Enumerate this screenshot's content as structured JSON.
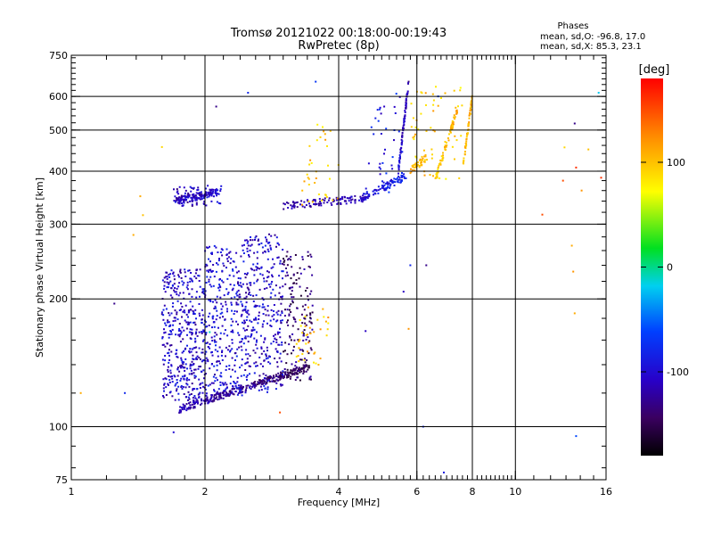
{
  "chart_data": {
    "type": "scatter",
    "title": "Tromsø 20121022 00:18:00-00:19:43",
    "subtitle": "RwPretec (8p)",
    "xlabel": "Frequency [MHz]",
    "ylabel": "Stationary phase Virtual Height [km]",
    "x_scale": "log",
    "y_scale": "log",
    "xlim": [
      1,
      16
    ],
    "ylim": [
      75,
      750
    ],
    "x_ticks": [
      1,
      2,
      4,
      6,
      8,
      10,
      16
    ],
    "x_tick_labels": [
      "1",
      "2",
      "4",
      "6",
      "8",
      "10",
      "16"
    ],
    "x_grid": [
      2,
      4,
      6,
      8,
      10
    ],
    "y_ticks": [
      75,
      100,
      200,
      300,
      400,
      500,
      600,
      750
    ],
    "y_tick_labels": [
      "75",
      "100",
      "200",
      "300",
      "400",
      "500",
      "600",
      "750"
    ],
    "y_grid": [
      100,
      200,
      300,
      400,
      500,
      600
    ],
    "grid": true,
    "stats": {
      "header": "Phases",
      "line_o": "mean, sd,O: -96.8, 17.0",
      "line_x": "mean, sd,X: 85.3, 23.1"
    },
    "colorbar": {
      "label": "[deg]",
      "range": [
        -180,
        180
      ],
      "ticks": [
        100,
        0,
        -100
      ],
      "tick_labels": [
        "100",
        "0",
        "-100"
      ]
    },
    "traces": [
      {
        "f_start": 1.75,
        "f_end": 3.4,
        "h_start": 110,
        "h_end": 138,
        "phase_start": -110,
        "phase_end": -150,
        "count": 320
      },
      {
        "f_start": 1.72,
        "f_end": 2.15,
        "h_start": 340,
        "h_end": 358,
        "phase_start": -110,
        "phase_end": -100,
        "count": 140
      },
      {
        "f_start": 3.0,
        "f_end": 4.6,
        "h_start": 332,
        "h_end": 345,
        "phase_start": -120,
        "phase_end": -110,
        "count": 110
      },
      {
        "f_start": 4.5,
        "f_end": 5.7,
        "h_start": 345,
        "h_end": 390,
        "phase_start": -100,
        "phase_end": -80,
        "count": 90
      },
      {
        "f_start": 5.45,
        "f_end": 5.75,
        "h_start": 400,
        "h_end": 650,
        "phase_start": -100,
        "phase_end": -120,
        "count": 80
      },
      {
        "f_start": 6.6,
        "f_end": 7.4,
        "h_start": 380,
        "h_end": 560,
        "phase_start": 90,
        "phase_end": 110,
        "count": 70
      },
      {
        "f_start": 7.6,
        "f_end": 8.0,
        "h_start": 400,
        "h_end": 600,
        "phase_start": 100,
        "phase_end": 110,
        "count": 60
      },
      {
        "f_start": 5.8,
        "f_end": 6.3,
        "h_start": 400,
        "h_end": 430,
        "phase_start": 110,
        "phase_end": 100,
        "count": 40
      }
    ],
    "spread_regions": [
      {
        "f_min": 1.6,
        "f_max": 2.0,
        "h_min": 115,
        "h_max": 235,
        "phase": -105,
        "count": 420
      },
      {
        "f_min": 2.0,
        "f_max": 2.45,
        "h_min": 118,
        "h_max": 270,
        "phase": -100,
        "count": 330
      },
      {
        "f_min": 2.45,
        "f_max": 3.0,
        "h_min": 120,
        "h_max": 285,
        "phase": -105,
        "count": 330
      },
      {
        "f_min": 3.0,
        "f_max": 3.5,
        "h_min": 128,
        "h_max": 260,
        "phase": -140,
        "count": 160
      },
      {
        "f_min": 3.2,
        "f_max": 3.8,
        "h_min": 140,
        "h_max": 200,
        "phase": 100,
        "count": 40
      },
      {
        "f_min": 1.7,
        "f_max": 2.2,
        "h_min": 330,
        "h_max": 370,
        "phase": -110,
        "count": 60
      },
      {
        "f_min": 3.3,
        "f_max": 4.0,
        "h_min": 330,
        "h_max": 520,
        "phase": 100,
        "count": 35
      },
      {
        "f_min": 4.6,
        "f_max": 5.6,
        "h_min": 350,
        "h_max": 620,
        "phase": -90,
        "count": 40
      },
      {
        "f_min": 5.8,
        "f_max": 7.6,
        "h_min": 380,
        "h_max": 640,
        "phase": 95,
        "count": 60
      }
    ],
    "scattered_points": [
      [
        1.0,
        105,
        -90
      ],
      [
        1.05,
        120,
        110
      ],
      [
        1.25,
        195,
        -130
      ],
      [
        1.32,
        120,
        -80
      ],
      [
        1.38,
        283,
        110
      ],
      [
        1.43,
        349,
        110
      ],
      [
        1.45,
        315,
        100
      ],
      [
        1.6,
        456,
        90
      ],
      [
        1.7,
        97,
        -100
      ],
      [
        2.05,
        167,
        -10
      ],
      [
        2.12,
        568,
        -130
      ],
      [
        2.5,
        612,
        -80
      ],
      [
        2.95,
        108,
        150
      ],
      [
        3.55,
        650,
        -70
      ],
      [
        4.6,
        168,
        -110
      ],
      [
        5.6,
        208,
        -110
      ],
      [
        5.75,
        170,
        120
      ],
      [
        5.8,
        240,
        -80
      ],
      [
        6.2,
        100,
        -80
      ],
      [
        6.3,
        240,
        -130
      ],
      [
        6.7,
        600,
        -60
      ],
      [
        6.9,
        78,
        -90
      ],
      [
        11.5,
        316,
        150
      ],
      [
        12.9,
        455,
        90
      ],
      [
        13.4,
        267,
        110
      ],
      [
        13.5,
        232,
        120
      ],
      [
        13.6,
        185,
        110
      ],
      [
        13.7,
        95,
        -60
      ],
      [
        13.6,
        518,
        -130
      ],
      [
        13.7,
        408,
        160
      ],
      [
        14.6,
        450,
        100
      ],
      [
        15.4,
        612,
        -20
      ],
      [
        15.6,
        386,
        160
      ],
      [
        14.1,
        360,
        120
      ],
      [
        12.8,
        380,
        150
      ]
    ]
  }
}
